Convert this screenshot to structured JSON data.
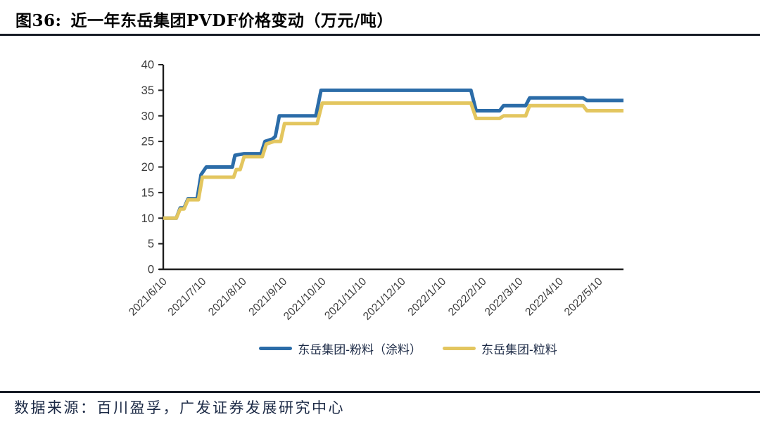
{
  "figure": {
    "title_prefix": "图36:",
    "title_text": "近一年东岳集团PVDF价格变动（万元/吨）",
    "source": "数据来源：百川盈孚，广发证券发展研究中心"
  },
  "colors": {
    "series_blue": "#2B6CA8",
    "series_yellow": "#E3C65F",
    "axis": "#1f1f1f",
    "tick_label": "#3c3c3c",
    "dark_text": "#1b2945",
    "rule": "#171c26"
  },
  "chart_data": {
    "type": "line",
    "title": "近一年东岳集团PVDF价格变动（万元/吨）",
    "xlabel": "",
    "ylabel": "",
    "ylim": [
      0,
      40
    ],
    "y_ticks": [
      0,
      5,
      10,
      15,
      20,
      25,
      30,
      35,
      40
    ],
    "x_ticks": [
      "2021/6/10",
      "2021/7/10",
      "2021/8/10",
      "2021/9/10",
      "2021/10/10",
      "2021/11/10",
      "2021/12/10",
      "2022/1/10",
      "2022/2/10",
      "2022/3/10",
      "2022/4/10",
      "2022/5/10"
    ],
    "x_range": [
      "2021/6/10",
      "2022/5/29"
    ],
    "grid": false,
    "legend_position": "bottom",
    "series": [
      {
        "name": "东岳集团-粉料（涂料）",
        "key": "powder-coating",
        "color_key": "series_blue",
        "points": [
          [
            "2021/6/10",
            10
          ],
          [
            "2021/6/20",
            10
          ],
          [
            "2021/6/23",
            12
          ],
          [
            "2021/6/26",
            12
          ],
          [
            "2021/6/29",
            13.8
          ],
          [
            "2021/7/6",
            13.8
          ],
          [
            "2021/7/9",
            18.5
          ],
          [
            "2021/7/13",
            20
          ],
          [
            "2021/8/2",
            20
          ],
          [
            "2021/8/4",
            22.3
          ],
          [
            "2021/8/11",
            22.6
          ],
          [
            "2021/8/24",
            22.6
          ],
          [
            "2021/8/27",
            25
          ],
          [
            "2021/9/2",
            25.5
          ],
          [
            "2021/9/4",
            26
          ],
          [
            "2021/9/7",
            30
          ],
          [
            "2021/10/5",
            30
          ],
          [
            "2021/10/9",
            35
          ],
          [
            "2022/2/1",
            35
          ],
          [
            "2022/2/5",
            31
          ],
          [
            "2022/2/23",
            31
          ],
          [
            "2022/2/26",
            32
          ],
          [
            "2022/3/15",
            32
          ],
          [
            "2022/3/18",
            33.5
          ],
          [
            "2022/4/28",
            33.5
          ],
          [
            "2022/5/1",
            33
          ],
          [
            "2022/5/29",
            33
          ]
        ]
      },
      {
        "name": "东岳集团-粒料",
        "key": "granule",
        "color_key": "series_yellow",
        "points": [
          [
            "2021/6/10",
            10
          ],
          [
            "2021/6/20",
            10
          ],
          [
            "2021/6/23",
            11.8
          ],
          [
            "2021/6/26",
            11.8
          ],
          [
            "2021/6/29",
            13.6
          ],
          [
            "2021/7/7",
            13.6
          ],
          [
            "2021/7/10",
            18
          ],
          [
            "2021/8/3",
            18
          ],
          [
            "2021/8/5",
            19.5
          ],
          [
            "2021/8/8",
            19.5
          ],
          [
            "2021/8/11",
            22
          ],
          [
            "2021/8/25",
            22
          ],
          [
            "2021/8/28",
            24.5
          ],
          [
            "2021/9/3",
            25
          ],
          [
            "2021/9/8",
            25
          ],
          [
            "2021/9/11",
            28.5
          ],
          [
            "2021/10/6",
            28.5
          ],
          [
            "2021/10/10",
            32.5
          ],
          [
            "2022/2/1",
            32.5
          ],
          [
            "2022/2/5",
            29.5
          ],
          [
            "2022/2/23",
            29.5
          ],
          [
            "2022/2/26",
            30
          ],
          [
            "2022/3/15",
            30
          ],
          [
            "2022/3/18",
            32
          ],
          [
            "2022/4/28",
            32
          ],
          [
            "2022/5/1",
            31
          ],
          [
            "2022/5/29",
            31
          ]
        ]
      }
    ]
  }
}
